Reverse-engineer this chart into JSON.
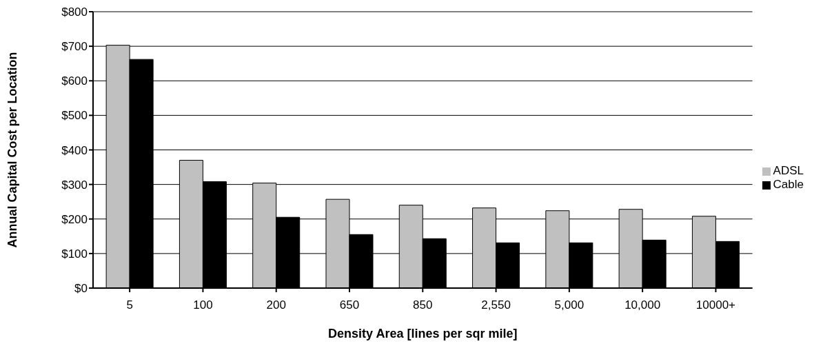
{
  "chart_data": {
    "type": "bar",
    "xlabel": "Density Area [lines per sqr mile]",
    "ylabel": "Annual Capital Cost per Location",
    "categories": [
      "5",
      "100",
      "200",
      "650",
      "850",
      "2,550",
      "5,000",
      "10,000",
      "10000+"
    ],
    "series": [
      {
        "name": "ADSL",
        "color": "#c0c0c0",
        "values": [
          703,
          370,
          304,
          257,
          240,
          232,
          224,
          228,
          208
        ]
      },
      {
        "name": "Cable",
        "color": "#000000",
        "values": [
          662,
          308,
          205,
          155,
          143,
          131,
          131,
          139,
          135
        ]
      }
    ],
    "ylim": [
      0,
      800
    ],
    "yticks": [
      {
        "value": 0,
        "label": "$0"
      },
      {
        "value": 100,
        "label": "$100"
      },
      {
        "value": 200,
        "label": "$200"
      },
      {
        "value": 300,
        "label": "$300"
      },
      {
        "value": 400,
        "label": "$400"
      },
      {
        "value": 500,
        "label": "$500"
      },
      {
        "value": 600,
        "label": "$600"
      },
      {
        "value": 700,
        "label": "$700"
      },
      {
        "value": 800,
        "label": "$800"
      }
    ],
    "grid": "y",
    "legend": "right"
  }
}
